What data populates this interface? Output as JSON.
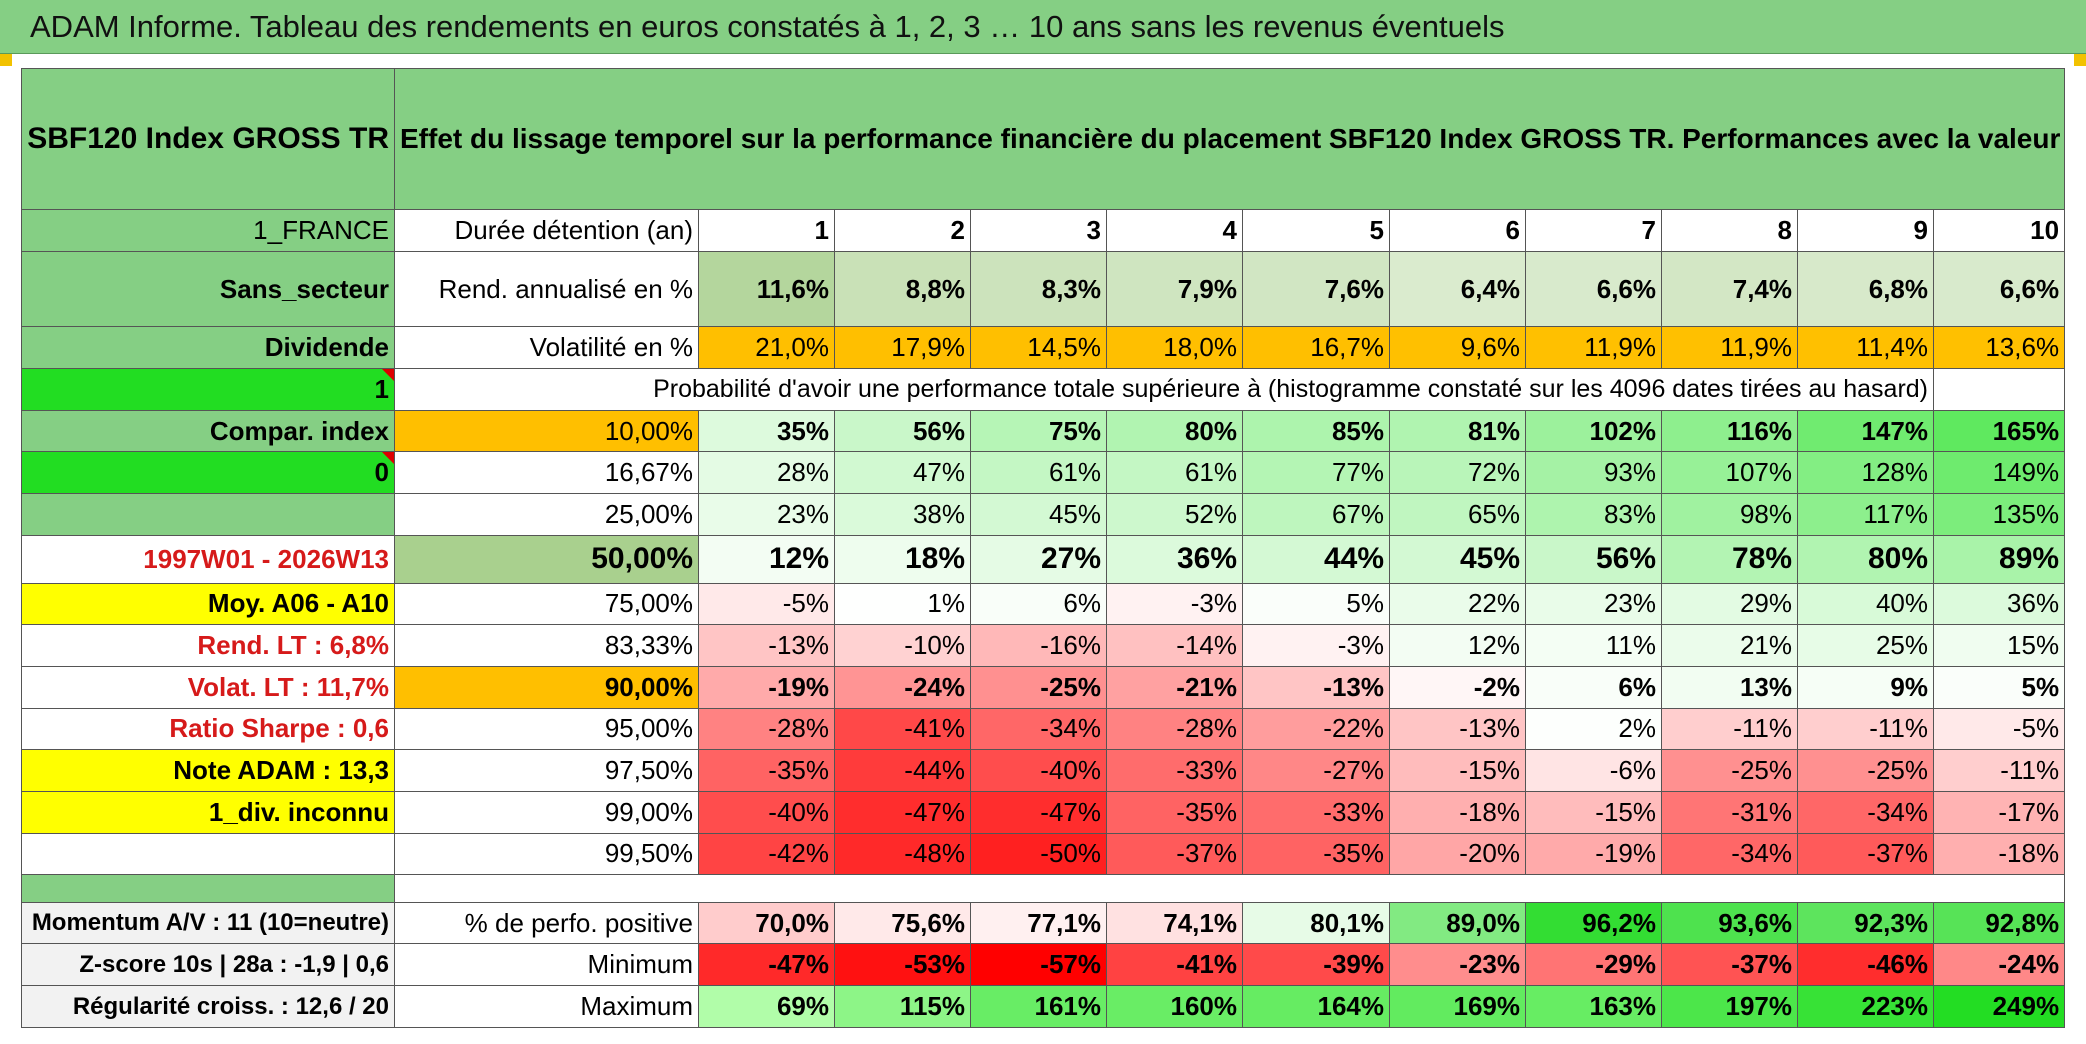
{
  "banner": "ADAM Informe. Tableau des rendements en euros constatés à 1, 2, 3 … 10 ans sans les revenus éventuels",
  "header": {
    "index_name": "SBF120 Index GROSS TR",
    "description": "Effet du lissage temporel sur la performance financière du placement SBF120 Index GROSS TR. Performances avec la valeur de l'actif sans prise en compte des revenus."
  },
  "side": {
    "country": "1_FRANCE",
    "sector": "Sans_secteur",
    "dividend": "Dividende",
    "one": "1",
    "compar": "Compar. index",
    "zero": "0",
    "period": "1997W01 - 2026W13",
    "moy": "Moy. A06 - A10",
    "rend_lt": "Rend. LT :   6,8%",
    "volat_lt": "Volat. LT :   11,7%",
    "sharpe": "Ratio Sharpe :   0,6",
    "note": "Note ADAM : 13,3",
    "div": "1_div. inconnu",
    "momentum": "Momentum A/V : 11 (10=neutre)",
    "zscore": "Z-score 10s | 28a : -1,9 | 0,6",
    "regularite": "Régularité croiss. : 12,6 / 20"
  },
  "rows": {
    "duration_label": "Durée détention (an)",
    "durations": [
      "1",
      "2",
      "3",
      "4",
      "5",
      "6",
      "7",
      "8",
      "9",
      "10"
    ],
    "rend_label": "Rend. annualisé en %",
    "rend": [
      "11,6%",
      "8,8%",
      "8,3%",
      "7,9%",
      "7,6%",
      "6,4%",
      "6,6%",
      "7,4%",
      "6,8%",
      "6,6%"
    ],
    "vol_label": "Volatilité en %",
    "vol": [
      "21,0%",
      "17,9%",
      "14,5%",
      "18,0%",
      "16,7%",
      "9,6%",
      "11,9%",
      "11,9%",
      "11,4%",
      "13,6%"
    ],
    "prob_label": "Probabilité d'avoir une performance totale supérieure à (histogramme constaté sur les 4096 dates tirées au hasard)",
    "pos_label": "% de perfo. positive",
    "pos": [
      "70,0%",
      "75,6%",
      "77,1%",
      "74,1%",
      "80,1%",
      "89,0%",
      "96,2%",
      "93,6%",
      "92,3%",
      "92,8%"
    ],
    "min_label": "Minimum",
    "min": [
      "-47%",
      "-53%",
      "-57%",
      "-41%",
      "-39%",
      "-23%",
      "-29%",
      "-37%",
      "-46%",
      "-24%"
    ],
    "max_label": "Maximum",
    "max": [
      "69%",
      "115%",
      "161%",
      "160%",
      "164%",
      "169%",
      "163%",
      "197%",
      "223%",
      "249%"
    ]
  },
  "percentiles": [
    {
      "p": "10,00%",
      "v": [
        "35%",
        "56%",
        "75%",
        "80%",
        "85%",
        "81%",
        "102%",
        "116%",
        "147%",
        "165%"
      ]
    },
    {
      "p": "16,67%",
      "v": [
        "28%",
        "47%",
        "61%",
        "61%",
        "77%",
        "72%",
        "93%",
        "107%",
        "128%",
        "149%"
      ]
    },
    {
      "p": "25,00%",
      "v": [
        "23%",
        "38%",
        "45%",
        "52%",
        "67%",
        "65%",
        "83%",
        "98%",
        "117%",
        "135%"
      ]
    },
    {
      "p": "50,00%",
      "v": [
        "12%",
        "18%",
        "27%",
        "36%",
        "44%",
        "45%",
        "56%",
        "78%",
        "80%",
        "89%"
      ]
    },
    {
      "p": "75,00%",
      "v": [
        "-5%",
        "1%",
        "6%",
        "-3%",
        "5%",
        "22%",
        "23%",
        "29%",
        "40%",
        "36%"
      ]
    },
    {
      "p": "83,33%",
      "v": [
        "-13%",
        "-10%",
        "-16%",
        "-14%",
        "-3%",
        "12%",
        "11%",
        "21%",
        "25%",
        "15%"
      ]
    },
    {
      "p": "90,00%",
      "v": [
        "-19%",
        "-24%",
        "-25%",
        "-21%",
        "-13%",
        "-2%",
        "6%",
        "13%",
        "9%",
        "5%"
      ]
    },
    {
      "p": "95,00%",
      "v": [
        "-28%",
        "-41%",
        "-34%",
        "-28%",
        "-22%",
        "-13%",
        "2%",
        "-11%",
        "-11%",
        "-5%"
      ]
    },
    {
      "p": "97,50%",
      "v": [
        "-35%",
        "-44%",
        "-40%",
        "-33%",
        "-27%",
        "-15%",
        "-6%",
        "-25%",
        "-25%",
        "-11%"
      ]
    },
    {
      "p": "99,00%",
      "v": [
        "-40%",
        "-47%",
        "-47%",
        "-35%",
        "-33%",
        "-18%",
        "-15%",
        "-31%",
        "-34%",
        "-17%"
      ]
    },
    {
      "p": "99,50%",
      "v": [
        "-42%",
        "-48%",
        "-50%",
        "-37%",
        "-35%",
        "-20%",
        "-19%",
        "-34%",
        "-37%",
        "-18%"
      ]
    }
  ],
  "colors": {
    "header_green": "#85cf84",
    "bright_green": "#22dd22",
    "orange": "#ffbf00",
    "yellow": "#ffff00",
    "red_text": "#d61a1a"
  }
}
